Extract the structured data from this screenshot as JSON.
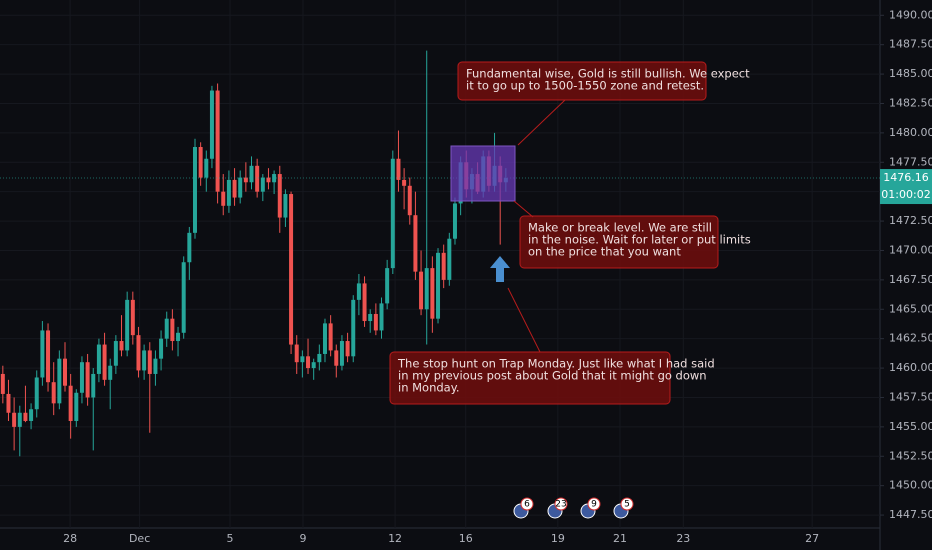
{
  "chart_data": {
    "type": "candlestick",
    "ohlc": [
      [
        1459.5,
        1460.2,
        1457.0,
        1457.8
      ],
      [
        1457.8,
        1459.0,
        1455.5,
        1456.2
      ],
      [
        1456.2,
        1457.5,
        1453.0,
        1455.0
      ],
      [
        1455.0,
        1456.8,
        1452.5,
        1456.2
      ],
      [
        1456.2,
        1458.5,
        1455.4,
        1455.5
      ],
      [
        1455.5,
        1457.0,
        1454.8,
        1456.5
      ],
      [
        1456.5,
        1459.8,
        1455.8,
        1459.2
      ],
      [
        1459.2,
        1464.0,
        1458.5,
        1463.2
      ],
      [
        1463.2,
        1463.8,
        1458.0,
        1458.8
      ],
      [
        1458.8,
        1460.5,
        1456.0,
        1457.0
      ],
      [
        1457.0,
        1461.5,
        1456.5,
        1460.8
      ],
      [
        1460.8,
        1462.2,
        1458.0,
        1458.5
      ],
      [
        1458.5,
        1459.5,
        1454.0,
        1455.5
      ],
      [
        1455.5,
        1458.2,
        1455.0,
        1457.9
      ],
      [
        1457.9,
        1461.0,
        1457.0,
        1460.5
      ],
      [
        1460.5,
        1461.2,
        1456.8,
        1457.5
      ],
      [
        1457.5,
        1460.0,
        1453.0,
        1459.5
      ],
      [
        1459.5,
        1462.5,
        1458.8,
        1462.0
      ],
      [
        1462.0,
        1463.0,
        1458.5,
        1459.0
      ],
      [
        1459.0,
        1460.8,
        1456.5,
        1460.2
      ],
      [
        1460.2,
        1462.8,
        1459.5,
        1462.3
      ],
      [
        1462.3,
        1464.5,
        1461.0,
        1461.5
      ],
      [
        1461.5,
        1466.5,
        1461.0,
        1465.8
      ],
      [
        1465.8,
        1466.5,
        1462.0,
        1462.8
      ],
      [
        1462.8,
        1463.5,
        1459.2,
        1459.8
      ],
      [
        1459.8,
        1462.0,
        1459.0,
        1461.5
      ],
      [
        1461.5,
        1462.2,
        1454.5,
        1459.5
      ],
      [
        1459.5,
        1461.5,
        1458.5,
        1460.8
      ],
      [
        1460.8,
        1463.2,
        1459.8,
        1462.5
      ],
      [
        1462.5,
        1464.8,
        1461.8,
        1464.2
      ],
      [
        1464.2,
        1465.0,
        1461.5,
        1462.3
      ],
      [
        1462.3,
        1463.5,
        1461.0,
        1463.0
      ],
      [
        1463.0,
        1469.5,
        1462.5,
        1469.0
      ],
      [
        1469.0,
        1472.0,
        1467.5,
        1471.5
      ],
      [
        1471.5,
        1479.5,
        1471.0,
        1478.8
      ],
      [
        1478.8,
        1479.2,
        1475.5,
        1476.2
      ],
      [
        1476.2,
        1478.5,
        1475.0,
        1477.8
      ],
      [
        1477.8,
        1484.0,
        1477.0,
        1483.6
      ],
      [
        1483.6,
        1484.2,
        1474.0,
        1475.0
      ],
      [
        1475.0,
        1476.5,
        1473.0,
        1473.8
      ],
      [
        1473.8,
        1476.8,
        1473.2,
        1476.0
      ],
      [
        1476.0,
        1477.0,
        1473.8,
        1474.5
      ],
      [
        1474.5,
        1476.8,
        1474.0,
        1476.2
      ],
      [
        1476.2,
        1477.5,
        1475.0,
        1475.8
      ],
      [
        1475.8,
        1478.0,
        1475.2,
        1477.2
      ],
      [
        1477.2,
        1477.8,
        1474.5,
        1475.0
      ],
      [
        1475.0,
        1476.5,
        1474.2,
        1476.2
      ],
      [
        1476.2,
        1477.0,
        1475.2,
        1475.8
      ],
      [
        1475.8,
        1476.8,
        1474.8,
        1476.5
      ],
      [
        1476.5,
        1477.2,
        1471.5,
        1472.8
      ],
      [
        1472.8,
        1475.2,
        1472.0,
        1474.8
      ],
      [
        1474.8,
        1475.0,
        1461.2,
        1462.0
      ],
      [
        1462.0,
        1462.8,
        1459.5,
        1460.5
      ],
      [
        1460.5,
        1461.5,
        1459.2,
        1461.0
      ],
      [
        1461.0,
        1462.5,
        1459.5,
        1460.0
      ],
      [
        1460.0,
        1460.8,
        1459.0,
        1460.5
      ],
      [
        1460.5,
        1462.0,
        1459.8,
        1461.2
      ],
      [
        1461.2,
        1464.2,
        1460.5,
        1463.8
      ],
      [
        1463.8,
        1464.5,
        1461.0,
        1461.5
      ],
      [
        1461.5,
        1462.0,
        1459.2,
        1460.2
      ],
      [
        1460.2,
        1462.8,
        1459.8,
        1462.3
      ],
      [
        1462.3,
        1463.0,
        1460.5,
        1461.0
      ],
      [
        1461.0,
        1466.2,
        1460.5,
        1465.8
      ],
      [
        1465.8,
        1468.0,
        1464.5,
        1467.2
      ],
      [
        1467.2,
        1467.8,
        1463.5,
        1464.0
      ],
      [
        1464.0,
        1465.0,
        1463.0,
        1464.6
      ],
      [
        1464.6,
        1465.5,
        1462.8,
        1463.2
      ],
      [
        1463.2,
        1466.0,
        1462.5,
        1465.5
      ],
      [
        1465.5,
        1469.2,
        1465.0,
        1468.5
      ],
      [
        1468.5,
        1478.5,
        1468.0,
        1477.8
      ],
      [
        1477.8,
        1480.2,
        1475.0,
        1476.0
      ],
      [
        1476.0,
        1477.0,
        1473.5,
        1475.5
      ],
      [
        1475.5,
        1476.2,
        1472.2,
        1473.0
      ],
      [
        1473.0,
        1475.0,
        1467.5,
        1468.2
      ],
      [
        1468.2,
        1470.0,
        1464.5,
        1465.0
      ],
      [
        1465.0,
        1487.0,
        1462.0,
        1468.5
      ],
      [
        1468.5,
        1469.5,
        1463.0,
        1464.2
      ],
      [
        1464.2,
        1470.2,
        1463.8,
        1469.8
      ],
      [
        1469.8,
        1470.5,
        1466.8,
        1467.5
      ],
      [
        1467.5,
        1471.5,
        1467.0,
        1471.0
      ],
      [
        1471.0,
        1474.5,
        1470.5,
        1474.0
      ],
      [
        1474.0,
        1478.0,
        1473.0,
        1477.5
      ],
      [
        1477.5,
        1478.5,
        1474.5,
        1475.2
      ],
      [
        1475.2,
        1477.0,
        1474.0,
        1476.5
      ],
      [
        1476.5,
        1477.5,
        1474.8,
        1475.0
      ],
      [
        1475.0,
        1478.5,
        1474.5,
        1478.0
      ],
      [
        1478.0,
        1478.5,
        1475.0,
        1475.5
      ],
      [
        1475.5,
        1480.0,
        1475.0,
        1477.2
      ],
      [
        1477.2,
        1478.0,
        1470.5,
        1475.8
      ],
      [
        1475.8,
        1477.0,
        1475.0,
        1476.16
      ]
    ],
    "up_color": "#26a69a",
    "down_color": "#ef5350",
    "xlim": [
      -0.5,
      155.2
    ],
    "xticks": [
      {
        "value": 11.9,
        "label": "28"
      },
      {
        "value": 24.2,
        "label": "Dec"
      },
      {
        "value": 40.2,
        "label": "5"
      },
      {
        "value": 53.1,
        "label": "9"
      },
      {
        "value": 69.4,
        "label": "12"
      },
      {
        "value": 81.9,
        "label": "16"
      },
      {
        "value": 98.2,
        "label": "19"
      },
      {
        "value": 109.2,
        "label": "21"
      },
      {
        "value": 120.4,
        "label": "23"
      },
      {
        "value": 143.2,
        "label": "27"
      }
    ],
    "ylim": [
      1446.4,
      1491.3
    ],
    "yticks": [
      {
        "value": 1447.5,
        "label": "1447.50"
      },
      {
        "value": 1450,
        "label": "1450.00"
      },
      {
        "value": 1452.5,
        "label": "1452.50"
      },
      {
        "value": 1455,
        "label": "1455.00"
      },
      {
        "value": 1457.5,
        "label": "1457.50"
      },
      {
        "value": 1460,
        "label": "1460.00"
      },
      {
        "value": 1462.5,
        "label": "1462.50"
      },
      {
        "value": 1465,
        "label": "1465.00"
      },
      {
        "value": 1467.5,
        "label": "1467.50"
      },
      {
        "value": 1470,
        "label": "1470.00"
      },
      {
        "value": 1472.5,
        "label": "1472.50"
      },
      {
        "value": 1475,
        "label": "1475.00"
      },
      {
        "value": 1477.5,
        "label": "1477.50"
      },
      {
        "value": 1480,
        "label": "1480.00"
      },
      {
        "value": 1482.5,
        "label": "1482.50"
      },
      {
        "value": 1485,
        "label": "1485.00"
      },
      {
        "value": 1487.5,
        "label": "1487.50"
      },
      {
        "value": 1490,
        "label": "1490.00"
      }
    ],
    "last_price": 1476.16,
    "countdown": "01:00:02",
    "annotations": [
      {
        "lines": [
          "Fundamental wise, Gold is still bullish. We expect",
          "it to go up to 1500-1550 zone and retest."
        ]
      },
      {
        "lines": [
          "Make or break level. We are still",
          "in the noise. Wait for later or put limits",
          "on the price that you want"
        ]
      },
      {
        "lines": [
          "The stop hunt on Trap Monday. Just like what I had said",
          "in my previous post about Gold that it might go down",
          "in Monday."
        ]
      }
    ],
    "events": [
      "6",
      "23",
      "9",
      "5"
    ]
  }
}
